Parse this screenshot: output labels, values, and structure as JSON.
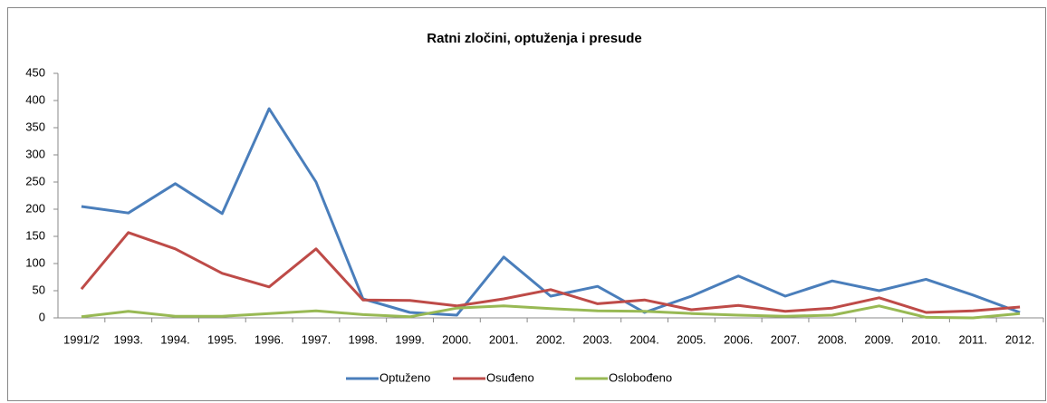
{
  "chart_data": {
    "type": "line",
    "title": "Ratni zločini, optuženja i presude",
    "categories": [
      "1991/2",
      "1993.",
      "1994.",
      "1995.",
      "1996.",
      "1997.",
      "1998.",
      "1999.",
      "2000.",
      "2001.",
      "2002.",
      "2003.",
      "2004.",
      "2005.",
      "2006.",
      "2007.",
      "2008.",
      "2009.",
      "2010.",
      "2011.",
      "2012."
    ],
    "series": [
      {
        "name": "Optuženo",
        "color": "#4a7ebb",
        "values": [
          205,
          193,
          247,
          192,
          385,
          250,
          35,
          10,
          5,
          112,
          40,
          58,
          10,
          40,
          77,
          40,
          68,
          50,
          71,
          42,
          10
        ]
      },
      {
        "name": "Osuđeno",
        "color": "#be4b48",
        "values": [
          53,
          157,
          127,
          82,
          57,
          127,
          33,
          32,
          22,
          35,
          52,
          26,
          33,
          15,
          23,
          12,
          18,
          37,
          10,
          13,
          20
        ]
      },
      {
        "name": "Oslobođeno",
        "color": "#98b954",
        "values": [
          2,
          12,
          3,
          3,
          8,
          13,
          6,
          2,
          18,
          22,
          17,
          13,
          12,
          8,
          5,
          3,
          5,
          22,
          1,
          0,
          8
        ]
      }
    ],
    "ylim": [
      0,
      450
    ],
    "yticks": [
      0,
      50,
      100,
      150,
      200,
      250,
      300,
      350,
      400,
      450
    ],
    "legend": "bottom"
  }
}
